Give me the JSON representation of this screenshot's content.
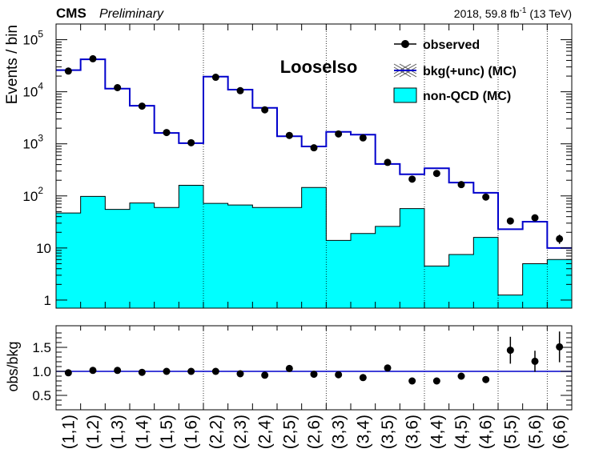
{
  "header": {
    "experiment": "CMS",
    "status": "Preliminary",
    "lumi_label": "2018, 59.8 fb",
    "lumi_exp": "-1",
    "energy": "(13 TeV)"
  },
  "chart_data": [
    {
      "type": "bar",
      "panel": "main",
      "title": "LooseIso",
      "ylabel": "Events / bin",
      "yscale": "log",
      "ylim": [
        0.7,
        200000
      ],
      "yticks": [
        {
          "value": 1,
          "label": "1",
          "sup": ""
        },
        {
          "value": 10,
          "label": "10",
          "sup": ""
        },
        {
          "value": 100,
          "label": "10",
          "sup": "2"
        },
        {
          "value": 1000,
          "label": "10",
          "sup": "3"
        },
        {
          "value": 10000,
          "label": "10",
          "sup": "4"
        },
        {
          "value": 100000,
          "label": "10",
          "sup": "5"
        }
      ],
      "categories": [
        "(1,1)",
        "(1,2)",
        "(1,3)",
        "(1,4)",
        "(1,5)",
        "(1,6)",
        "(2,2)",
        "(2,3)",
        "(2,4)",
        "(2,5)",
        "(2,6)",
        "(3,3)",
        "(3,4)",
        "(3,5)",
        "(3,6)",
        "(4,4)",
        "(4,5)",
        "(4,6)",
        "(5,5)",
        "(5,6)",
        "(6,6)"
      ],
      "group_boundaries_after": [
        5,
        10,
        14,
        17,
        19
      ],
      "legend": {
        "placement": "top-right"
      },
      "series": [
        {
          "name": "observed",
          "style": "points",
          "values": [
            25000,
            43000,
            12000,
            5300,
            1650,
            1050,
            19000,
            10500,
            4500,
            1450,
            840,
            1550,
            1300,
            440,
            210,
            270,
            165,
            95,
            33,
            38,
            15
          ],
          "errors": [
            0,
            0,
            0,
            0,
            0,
            0,
            0,
            0,
            0,
            0,
            0,
            0,
            0,
            0,
            0,
            0,
            0,
            0,
            4,
            5,
            3
          ]
        },
        {
          "name": "bkg(+unc) (MC)",
          "style": "step",
          "color": "#0000cc",
          "values": [
            26000,
            42000,
            11500,
            5400,
            1620,
            1030,
            19500,
            11000,
            4900,
            1400,
            890,
            1700,
            1500,
            410,
            260,
            340,
            180,
            115,
            23,
            32,
            10
          ]
        },
        {
          "name": "non-QCD (MC)",
          "style": "filled",
          "color": "#00ffff",
          "values": [
            47,
            98,
            55,
            73,
            60,
            160,
            72,
            67,
            60,
            60,
            145,
            14,
            19,
            26,
            57,
            4.5,
            7.5,
            16,
            1.25,
            5,
            6
          ]
        }
      ]
    },
    {
      "type": "scatter",
      "panel": "ratio",
      "ylabel": "obs/bkg",
      "ylim": [
        0.2,
        1.95
      ],
      "yticks": [
        0.5,
        1.0,
        1.5
      ],
      "ytick_labels": [
        "0.5",
        "1.0",
        "1.5"
      ],
      "reference_line": 1.0,
      "values": [
        0.97,
        1.02,
        1.02,
        0.98,
        1.0,
        1.0,
        1.0,
        0.95,
        0.92,
        1.06,
        0.94,
        0.93,
        0.87,
        1.07,
        0.8,
        0.8,
        0.9,
        0.83,
        1.44,
        1.21,
        1.51
      ],
      "errors": [
        0,
        0,
        0,
        0,
        0,
        0,
        0,
        0,
        0,
        0,
        0,
        0,
        0,
        0,
        0,
        0.03,
        0.05,
        0.07,
        0.28,
        0.22,
        0.32
      ]
    }
  ]
}
